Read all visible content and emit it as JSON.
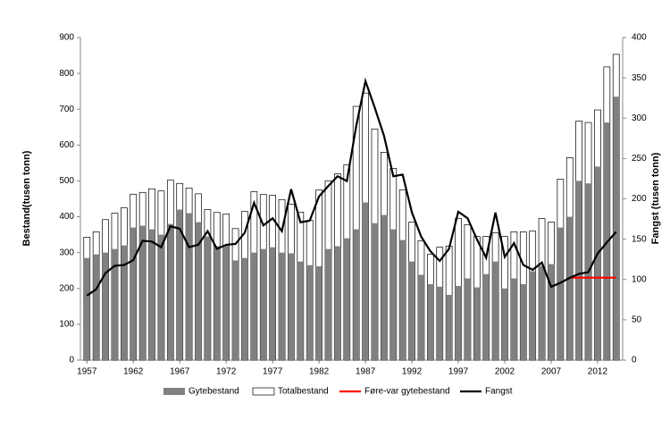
{
  "chart_data": {
    "type": "bar",
    "y_label": "Bestand(tusen tonn)",
    "y2_label": "Fangst (tusen tonn)",
    "x": [
      1957,
      1958,
      1959,
      1960,
      1961,
      1962,
      1963,
      1964,
      1965,
      1966,
      1967,
      1968,
      1969,
      1970,
      1971,
      1972,
      1973,
      1974,
      1975,
      1976,
      1977,
      1978,
      1979,
      1980,
      1981,
      1982,
      1983,
      1984,
      1985,
      1986,
      1987,
      1988,
      1989,
      1990,
      1991,
      1992,
      1993,
      1994,
      1995,
      1996,
      1997,
      1998,
      1999,
      2000,
      2001,
      2002,
      2003,
      2004,
      2005,
      2006,
      2007,
      2008,
      2009,
      2010,
      2011,
      2012,
      2013,
      2014
    ],
    "xlim": [
      1956.3,
      2014.7
    ],
    "xticks": [
      1957,
      1962,
      1967,
      1972,
      1977,
      1982,
      1987,
      1992,
      1997,
      2002,
      2007,
      2012
    ],
    "ylim": [
      0,
      900
    ],
    "yticks": [
      0,
      100,
      200,
      300,
      400,
      500,
      600,
      700,
      800,
      900
    ],
    "y2lim": [
      0,
      400
    ],
    "y2ticks": [
      0,
      50,
      100,
      150,
      200,
      250,
      300,
      350,
      400
    ],
    "series": [
      {
        "name": "Gytebestand",
        "type": "bar",
        "color": "#808080",
        "values": [
          285,
          295,
          300,
          310,
          320,
          370,
          375,
          365,
          350,
          380,
          420,
          410,
          385,
          345,
          318,
          320,
          278,
          285,
          300,
          310,
          315,
          300,
          298,
          275,
          265,
          262,
          310,
          318,
          340,
          365,
          440,
          382,
          405,
          365,
          335,
          275,
          238,
          212,
          205,
          182,
          207,
          228,
          203,
          240,
          275,
          200,
          228,
          212,
          248,
          263,
          268,
          370,
          400,
          500,
          493,
          540,
          663,
          735
        ]
      },
      {
        "name": "Totalbestand",
        "type": "bar",
        "color": "#ffffff",
        "values": [
          343,
          358,
          392,
          410,
          425,
          463,
          468,
          478,
          472,
          502,
          493,
          480,
          464,
          420,
          412,
          408,
          367,
          415,
          470,
          462,
          460,
          448,
          435,
          413,
          390,
          475,
          500,
          520,
          545,
          708,
          745,
          645,
          580,
          535,
          475,
          385,
          333,
          295,
          315,
          318,
          395,
          378,
          345,
          345,
          355,
          345,
          358,
          358,
          360,
          395,
          385,
          505,
          565,
          667,
          663,
          698,
          818,
          853
        ]
      },
      {
        "name": "Føre-var gytebestand",
        "type": "line",
        "color": "#ff0000",
        "values": [
          null,
          null,
          null,
          null,
          null,
          null,
          null,
          null,
          null,
          null,
          null,
          null,
          null,
          null,
          null,
          null,
          null,
          null,
          null,
          null,
          null,
          null,
          null,
          null,
          null,
          null,
          null,
          null,
          null,
          null,
          null,
          null,
          null,
          null,
          null,
          null,
          null,
          null,
          null,
          null,
          null,
          null,
          null,
          null,
          null,
          null,
          null,
          null,
          null,
          null,
          null,
          null,
          230,
          230,
          230,
          230,
          230,
          230
        ]
      },
      {
        "name": "Fangst",
        "type": "line",
        "axis": "y2",
        "color": "#000000",
        "values": [
          80,
          88,
          108,
          117,
          118,
          124,
          148,
          147,
          140,
          166,
          163,
          140,
          143,
          160,
          138,
          143,
          144,
          158,
          195,
          167,
          176,
          160,
          212,
          171,
          173,
          203,
          216,
          228,
          222,
          290,
          346,
          313,
          278,
          228,
          230,
          183,
          153,
          135,
          123,
          138,
          184,
          176,
          150,
          127,
          183,
          128,
          145,
          118,
          112,
          121,
          91,
          96,
          102,
          107,
          109,
          132,
          146,
          159
        ]
      }
    ]
  }
}
